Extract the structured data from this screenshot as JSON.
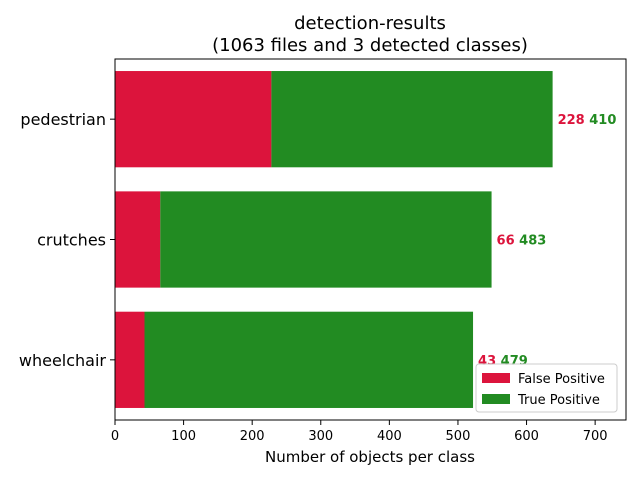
{
  "chart_data": {
    "type": "bar",
    "orientation": "horizontal",
    "stacked": true,
    "title": "detection-results",
    "subtitle": "(1063 files and 3 detected classes)",
    "xlabel": "Number of objects per class",
    "ylabel": "",
    "xlim": [
      0,
      745
    ],
    "x_ticks": [
      0,
      100,
      200,
      300,
      400,
      500,
      600,
      700
    ],
    "categories": [
      "pedestrian",
      "crutches",
      "wheelchair"
    ],
    "series": [
      {
        "name": "False Positive",
        "color": "#dc143c",
        "values": [
          228,
          66,
          43
        ]
      },
      {
        "name": "True Positive",
        "color": "#228b22",
        "values": [
          410,
          483,
          479
        ]
      }
    ],
    "legend": {
      "placement": "lower-right"
    },
    "grid": false
  }
}
